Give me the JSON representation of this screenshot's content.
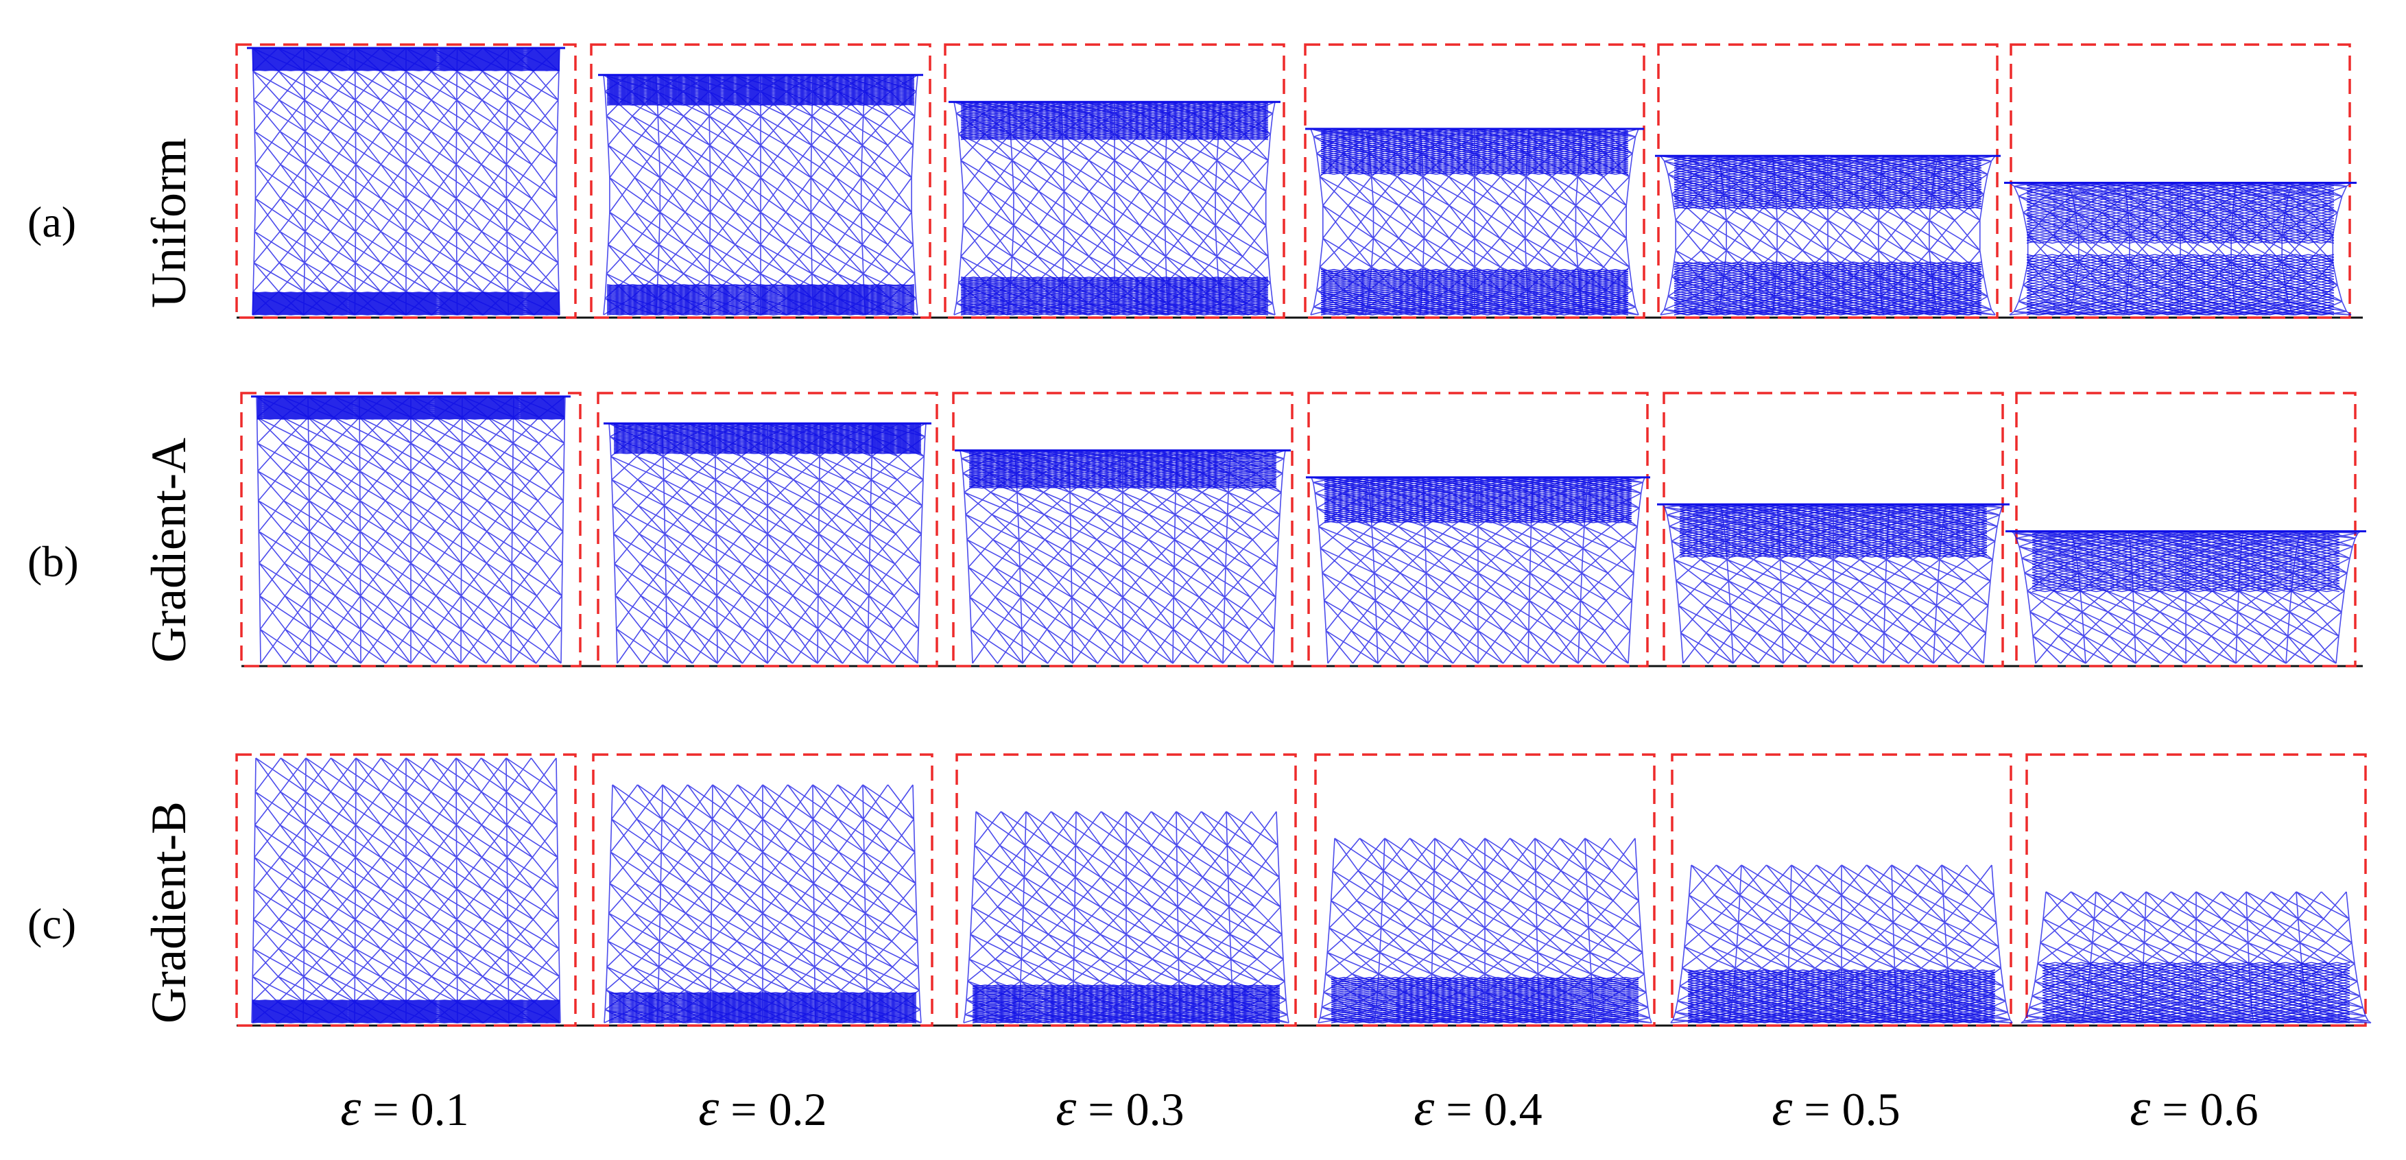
{
  "rows": [
    {
      "letter": "(a)",
      "name": "Uniform",
      "dense_at": "top-bottom"
    },
    {
      "letter": "(b)",
      "name": "Gradient-A",
      "dense_at": "top"
    },
    {
      "letter": "(c)",
      "name": "Gradient-B",
      "dense_at": "bottom"
    }
  ],
  "strain_symbol": "ε",
  "strains": [
    {
      "text": " = 0.1",
      "value": 0.1
    },
    {
      "text": " = 0.2",
      "value": 0.2
    },
    {
      "text": " = 0.3",
      "value": 0.3
    },
    {
      "text": " = 0.4",
      "value": 0.4
    },
    {
      "text": " = 0.5",
      "value": 0.5
    },
    {
      "text": " = 0.6",
      "value": 0.6
    }
  ],
  "colors": {
    "mesh": "#1010e6",
    "frame": "#ee2b2b",
    "baseline": "#111111"
  }
}
